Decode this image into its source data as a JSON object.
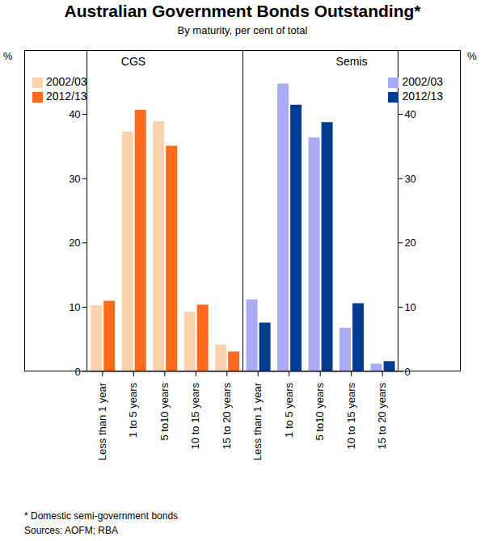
{
  "title": "Australian Government Bonds Outstanding*",
  "subtitle": "By maturity, per cent of total",
  "footnote": "* Domestic semi-government bonds",
  "source": "Sources: AOFM; RBA",
  "chart_data": [
    {
      "type": "bar",
      "title": "CGS",
      "y_label": "%",
      "categories": [
        "Less than 1 year",
        "1 to 5 years",
        "5 to10 years",
        "10 to 15 years",
        "15 to 20 years"
      ],
      "series": [
        {
          "name": "2002/03",
          "color": "#fad3ae",
          "values": [
            10.3,
            37.3,
            38.9,
            9.3,
            4.2
          ]
        },
        {
          "name": "2012/13",
          "color": "#ff6a1c",
          "values": [
            11.0,
            40.7,
            35.1,
            10.4,
            3.1
          ]
        }
      ],
      "ylim": [
        0,
        50
      ],
      "yticks": [
        0,
        10,
        20,
        30,
        40
      ],
      "legend": "upper left",
      "grid": false
    },
    {
      "type": "bar",
      "title": "Semis",
      "y_label": "%",
      "categories": [
        "Less than 1 year",
        "1 to 5 years",
        "5 to10 years",
        "10 to 15 years",
        "15 to 20 years"
      ],
      "series": [
        {
          "name": "2002/03",
          "color": "#aaaaf5",
          "values": [
            11.2,
            44.8,
            36.4,
            6.8,
            1.2
          ]
        },
        {
          "name": "2012/13",
          "color": "#003d8f",
          "values": [
            7.6,
            41.5,
            38.8,
            10.6,
            1.6
          ]
        }
      ],
      "ylim": [
        0,
        50
      ],
      "yticks": [
        0,
        10,
        20,
        30,
        40
      ],
      "legend": "upper right",
      "grid": false
    }
  ]
}
